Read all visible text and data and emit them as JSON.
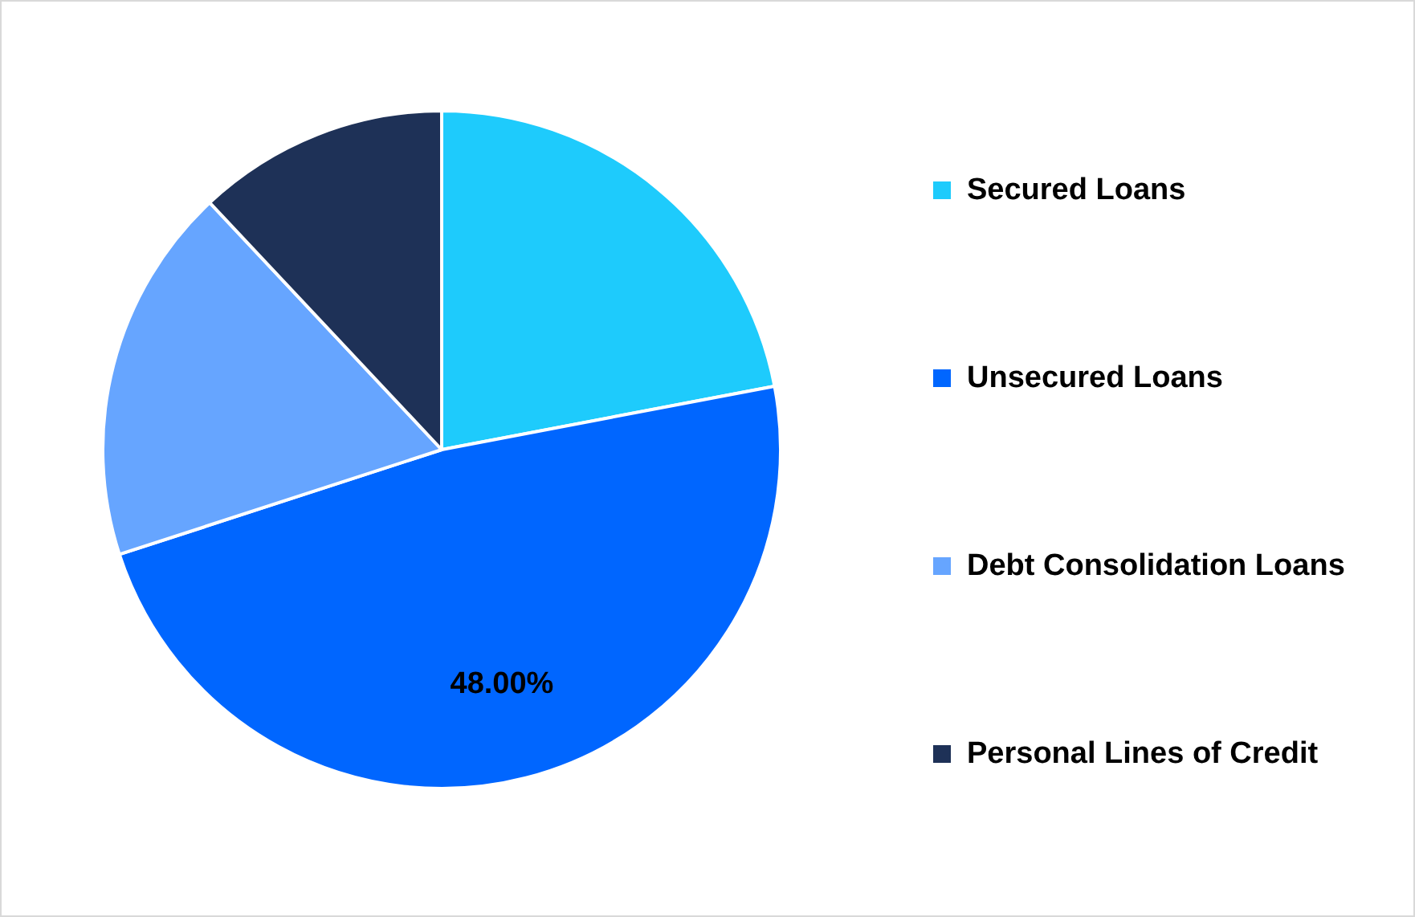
{
  "chart_data": {
    "type": "pie",
    "categories": [
      "Secured Loans",
      "Unsecured Loans",
      "Debt Consolidation Loans",
      "Personal Lines of Credit"
    ],
    "values": [
      22,
      48,
      18,
      12
    ],
    "colors": [
      "#1ecbfc",
      "#0066ff",
      "#66a5ff",
      "#1e3157"
    ],
    "value_labels": [
      null,
      "48.00%",
      null,
      null
    ],
    "legend": "right"
  }
}
